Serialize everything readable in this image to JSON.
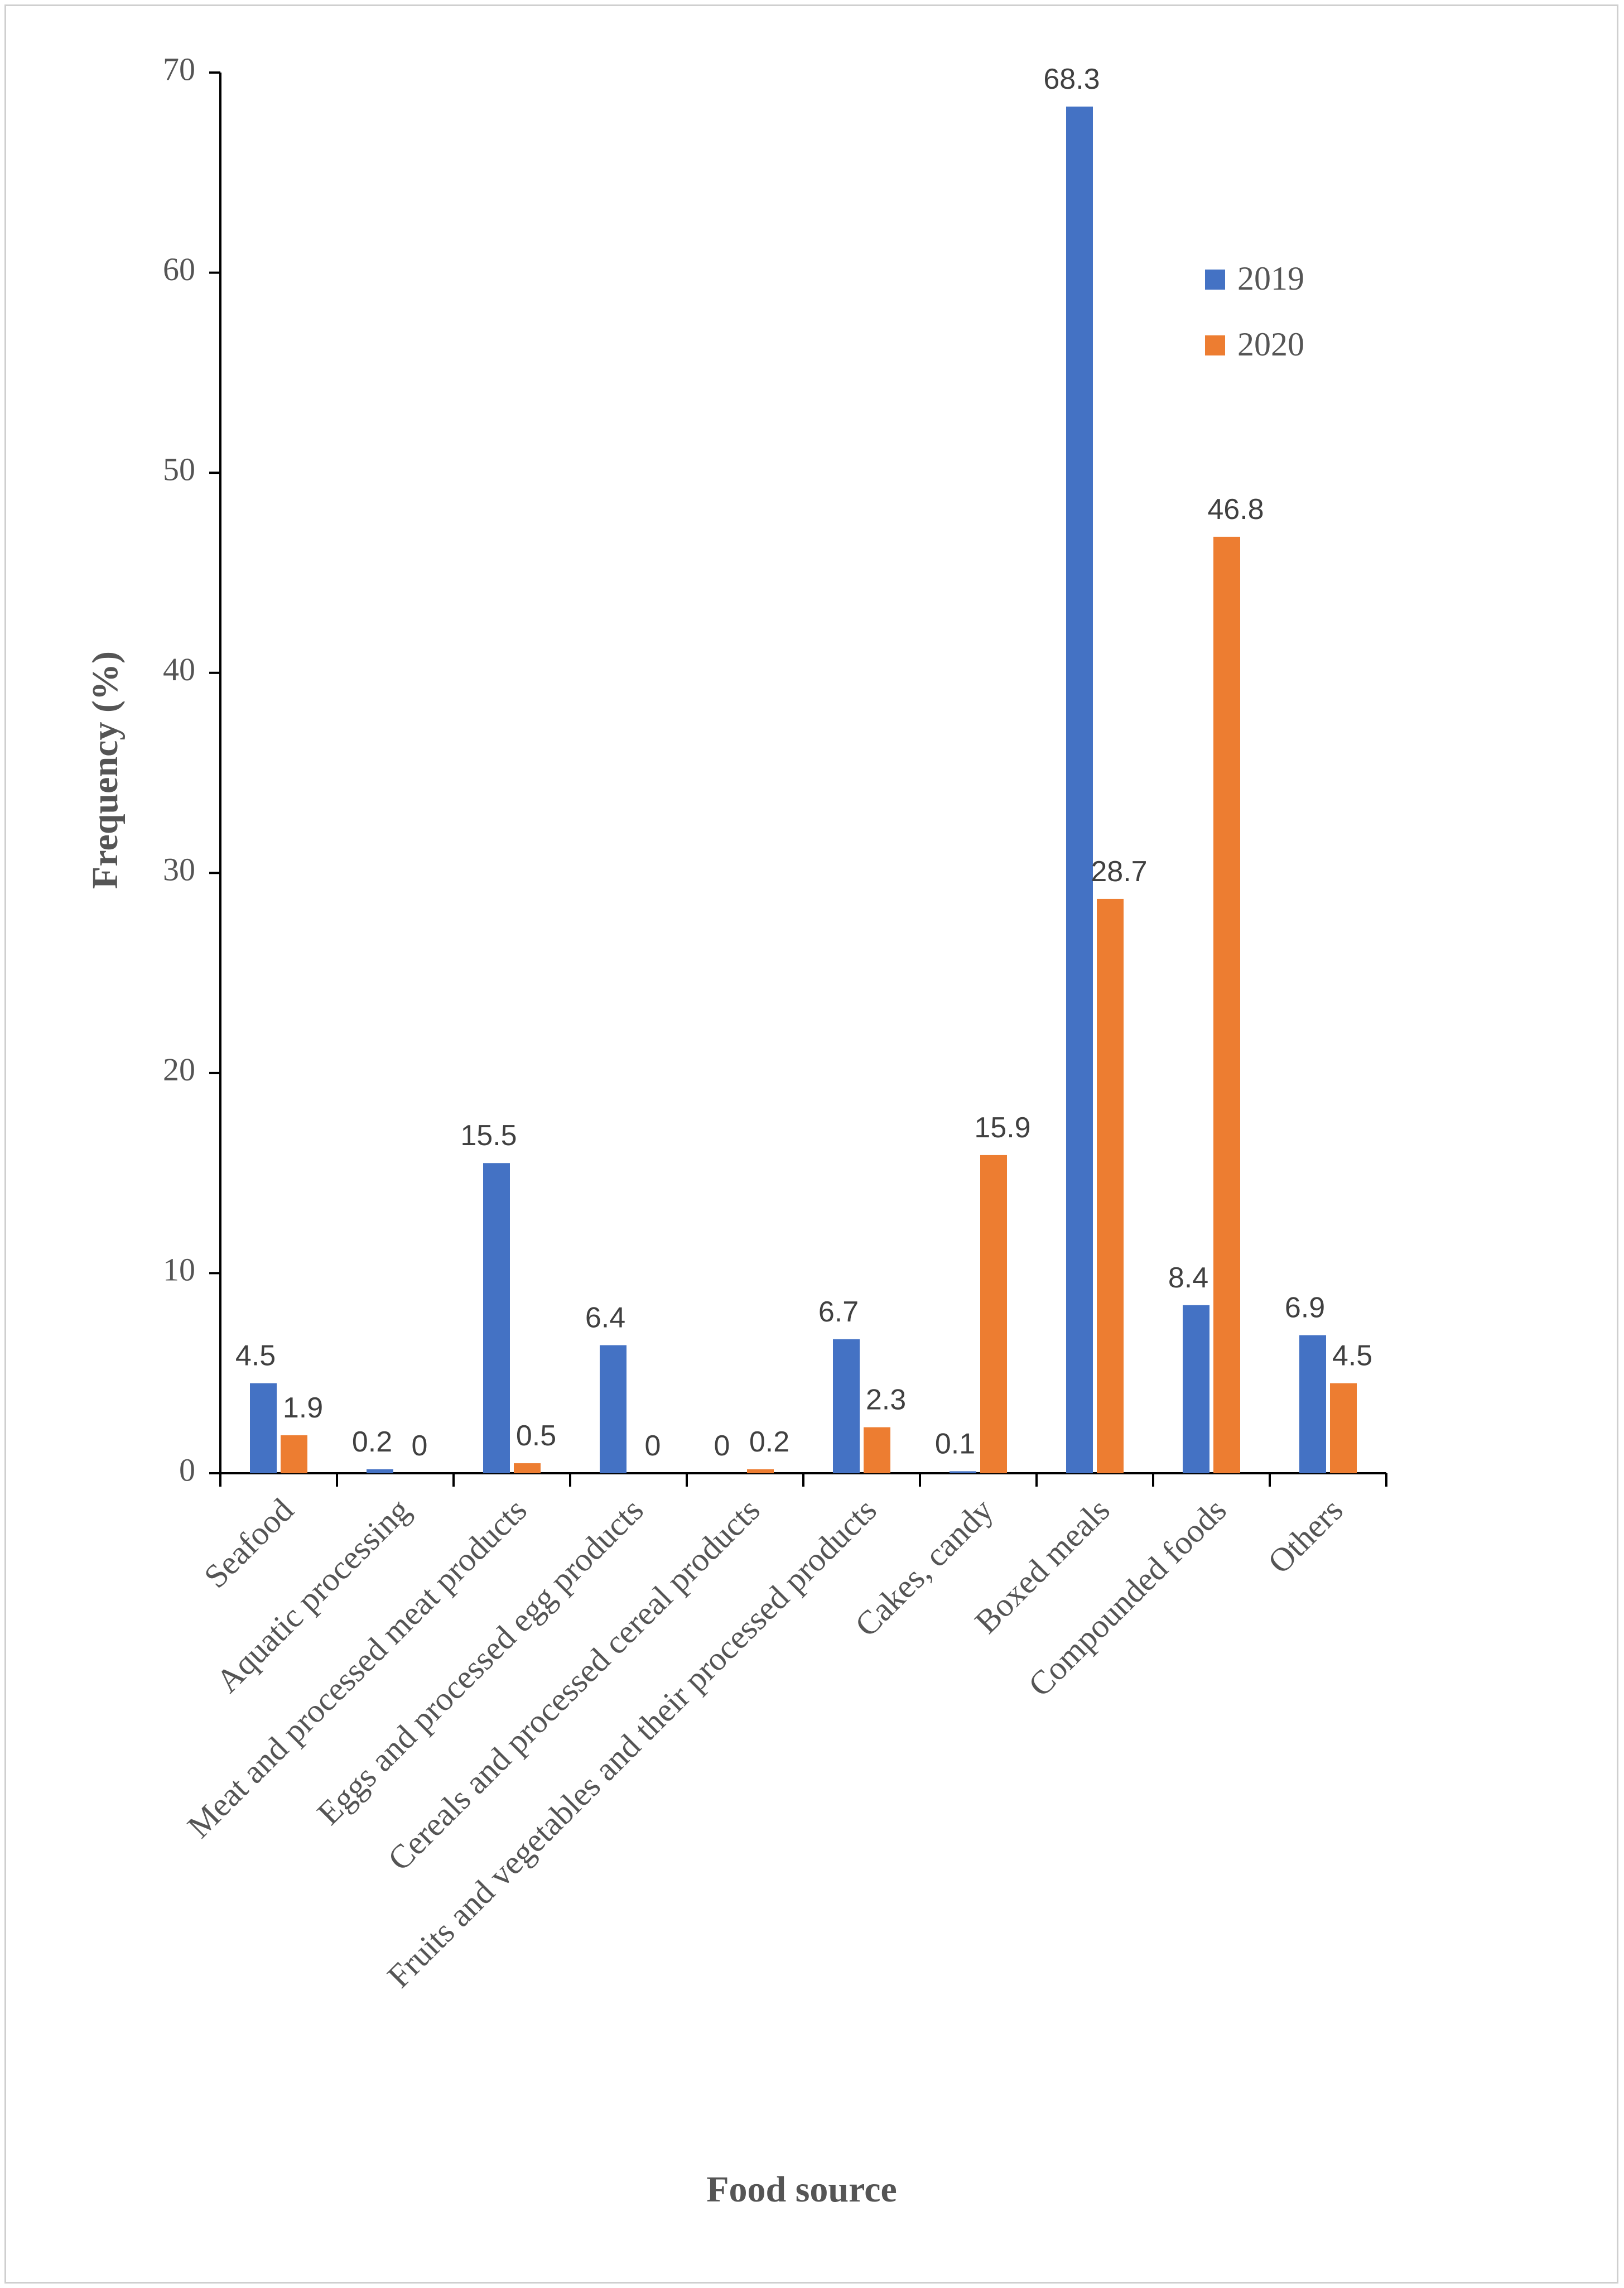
{
  "chart_data": {
    "type": "bar",
    "title": "",
    "xlabel": "Food source",
    "ylabel": "Frequency (%)",
    "ylim": [
      0,
      70
    ],
    "yticks": [
      0,
      10,
      20,
      30,
      40,
      50,
      60,
      70
    ],
    "grid": false,
    "legend_position": "top-right",
    "categories": [
      "Seafood",
      "Aquatic processing",
      "Meat and processed meat products",
      "Eggs and processed egg products",
      "Cereals and processed cereal products",
      "Fruits and vegetables and their processed products",
      "Cakes, candy",
      "Boxed meals",
      "Compounded foods",
      "Others"
    ],
    "series": [
      {
        "name": "2019",
        "color": "#4472C4",
        "values": [
          4.5,
          0.2,
          15.5,
          6.4,
          0,
          6.7,
          0.1,
          68.3,
          8.4,
          6.9
        ],
        "labels": [
          "4.5",
          "0.2",
          "15.5",
          "6.4",
          "0",
          "6.7",
          "0.1",
          "68.3",
          "8.4",
          "6.9"
        ]
      },
      {
        "name": "2020",
        "color": "#ED7D31",
        "values": [
          1.9,
          0,
          0.5,
          0,
          0.2,
          2.3,
          15.9,
          28.7,
          46.8,
          4.5
        ],
        "labels": [
          "1.9",
          "0",
          "0.5",
          "0",
          "0.2",
          "2.3",
          "15.9",
          "28.7",
          "46.8",
          "4.5"
        ]
      }
    ]
  }
}
